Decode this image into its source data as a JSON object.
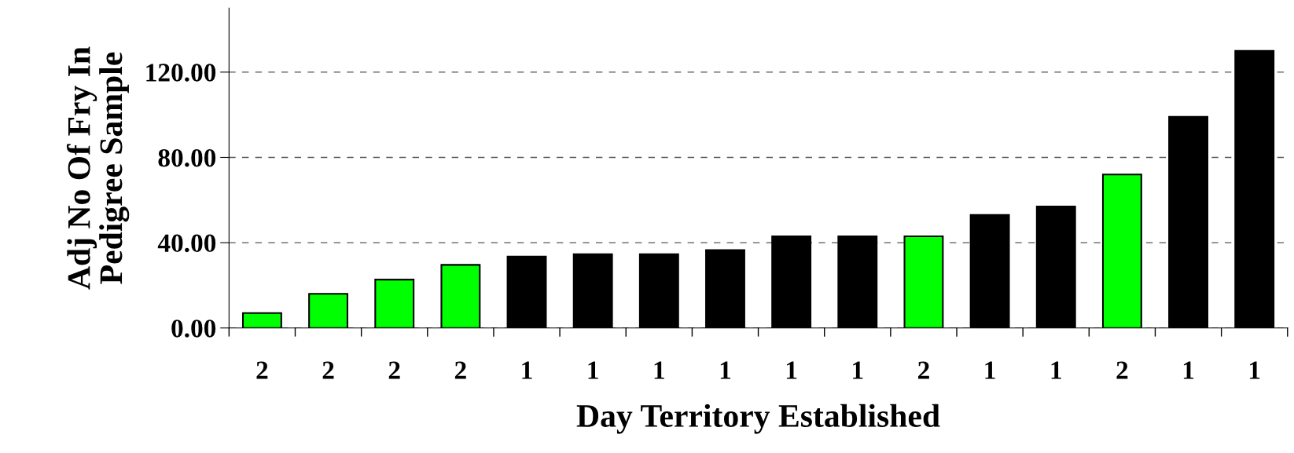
{
  "chart_data": {
    "type": "bar",
    "xlabel": "Day Territory Established",
    "ylabel": "Adj No Of Fry In\nPedigree Sample",
    "categories": [
      "2",
      "2",
      "2",
      "2",
      "1",
      "1",
      "1",
      "1",
      "1",
      "1",
      "2",
      "1",
      "1",
      "2",
      "1",
      "1"
    ],
    "values": [
      7,
      16,
      22.7,
      29.6,
      33.5,
      34.6,
      34.6,
      36.5,
      43,
      43,
      43,
      53,
      57,
      72,
      99,
      130
    ],
    "colors": [
      "#00ff00",
      "#00ff00",
      "#00ff00",
      "#00ff00",
      "#000000",
      "#000000",
      "#000000",
      "#000000",
      "#000000",
      "#000000",
      "#00ff00",
      "#000000",
      "#000000",
      "#00ff00",
      "#000000",
      "#000000"
    ],
    "ylim": [
      0,
      150
    ],
    "yticks": [
      {
        "value": 0,
        "label": "0.00"
      },
      {
        "value": 40,
        "label": "40.00"
      },
      {
        "value": 80,
        "label": "80.00"
      },
      {
        "value": 120,
        "label": "120.00"
      }
    ],
    "grid": "y",
    "legend": false
  }
}
